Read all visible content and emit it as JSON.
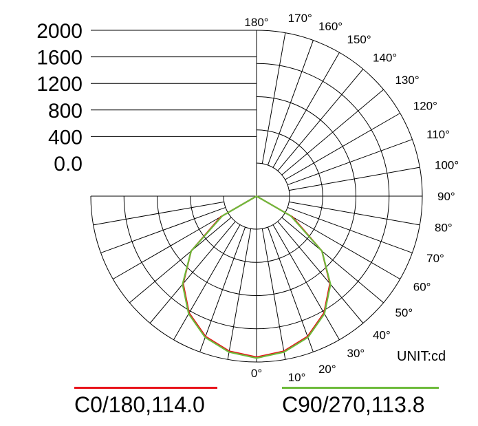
{
  "chart_data": {
    "type": "polar",
    "unit_label": "UNIT:cd",
    "radial_ticks": [
      "2000",
      "1600",
      "1200",
      "800",
      "400",
      "0.0"
    ],
    "radial_values": [
      2000,
      1600,
      1200,
      800,
      400,
      0
    ],
    "rmax": 2000,
    "angle_labels": [
      "0°",
      "10°",
      "20°",
      "30°",
      "40°",
      "50°",
      "60°",
      "70°",
      "80°",
      "90°",
      "100°",
      "110°",
      "120°",
      "130°",
      "140°",
      "150°",
      "160°",
      "170°",
      "180°"
    ],
    "angle_values": [
      0,
      10,
      20,
      30,
      40,
      50,
      60,
      70,
      80,
      90,
      100,
      110,
      120,
      130,
      140,
      150,
      160,
      170,
      180
    ],
    "series": [
      {
        "name": "C0/180,114.0",
        "color": "#e8141b",
        "angles": [
          -90,
          -80,
          -70,
          -60,
          -50,
          -40,
          -30,
          -20,
          -10,
          0,
          10,
          20,
          30,
          40,
          50,
          60,
          70,
          80,
          90
        ],
        "values": [
          0,
          0,
          0,
          460,
          950,
          1270,
          1500,
          1660,
          1750,
          1790,
          1750,
          1660,
          1500,
          1270,
          950,
          460,
          0,
          0,
          0
        ]
      },
      {
        "name": "C90/270,113.8",
        "color": "#6dbb3b",
        "angles": [
          -90,
          -80,
          -70,
          -60,
          -50,
          -40,
          -30,
          -20,
          -10,
          0,
          10,
          20,
          30,
          40,
          50,
          60,
          70,
          80,
          90
        ],
        "values": [
          0,
          0,
          0,
          440,
          950,
          1280,
          1510,
          1670,
          1760,
          1800,
          1760,
          1670,
          1510,
          1280,
          950,
          440,
          0,
          0,
          0
        ]
      }
    ]
  }
}
